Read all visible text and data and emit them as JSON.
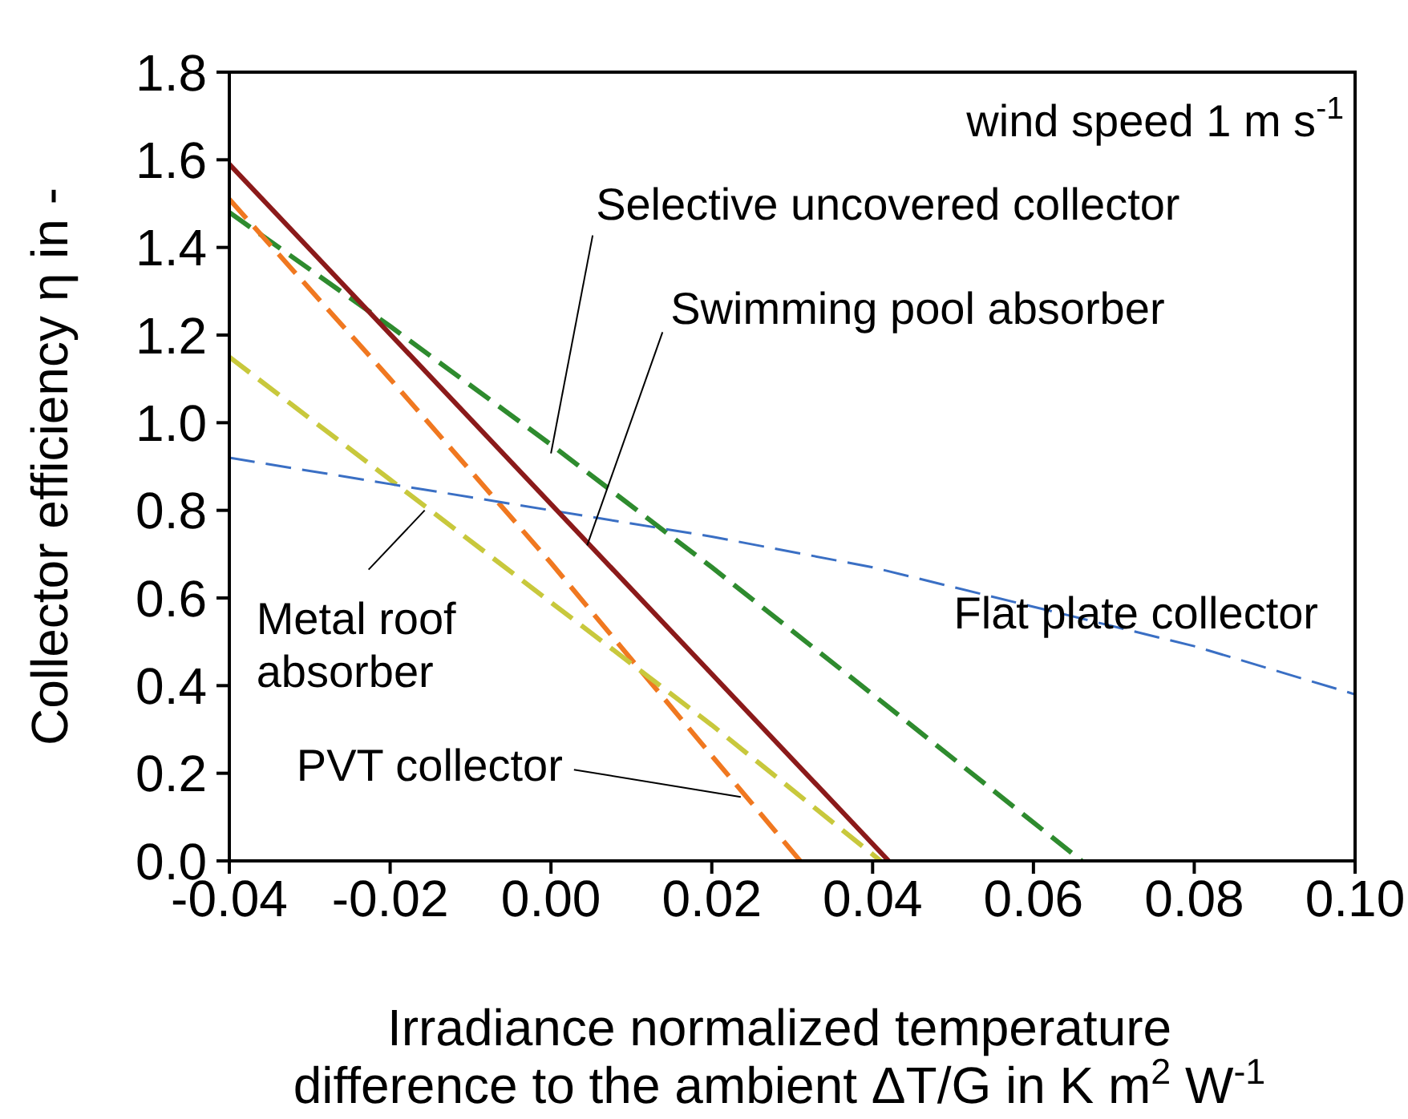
{
  "chart_data": {
    "type": "line",
    "xlabel": "Irradiance normalized temperature\ndifference to the ambient ΔT/G in K m$^{2}$ W$^{-1}$",
    "ylabel": "Collector efficiency η in -",
    "xlim": [
      -0.04,
      0.1
    ],
    "xticks": [
      {
        "value": -0.04,
        "label": "-0.04"
      },
      {
        "value": -0.02,
        "label": "-0.02"
      },
      {
        "value": 0,
        "label": "0.00"
      },
      {
        "value": 0.02,
        "label": "0.02"
      },
      {
        "value": 0.04,
        "label": "0.04"
      },
      {
        "value": 0.06,
        "label": "0.06"
      },
      {
        "value": 0.08,
        "label": "0.08"
      },
      {
        "value": 0.1,
        "label": "0.10"
      }
    ],
    "ylim": [
      0,
      1.8
    ],
    "yticks": [
      {
        "value": 0,
        "label": "0.0"
      },
      {
        "value": 0.2,
        "label": "0.2"
      },
      {
        "value": 0.4,
        "label": "0.4"
      },
      {
        "value": 0.6,
        "label": "0.6"
      },
      {
        "value": 0.8,
        "label": "0.8"
      },
      {
        "value": 1,
        "label": "1.0"
      },
      {
        "value": 1.2,
        "label": "1.2"
      },
      {
        "value": 1.4,
        "label": "1.4"
      },
      {
        "value": 1.6,
        "label": "1.6"
      },
      {
        "value": 1.8,
        "label": "1.8"
      }
    ],
    "grid": false,
    "marker": "none",
    "series": [
      {
        "color": "#2e8b2e",
        "line_style": "dashed",
        "x": [
          -0.04,
          -0.02,
          0,
          0.02,
          0.04,
          0.066
        ],
        "values": [
          1.48,
          1.22,
          0.95,
          0.67,
          0.38,
          0
        ]
      },
      {
        "color": "#f07820",
        "line_style": "dashed",
        "x": [
          -0.04,
          -0.02,
          0,
          0.02,
          0.031
        ],
        "values": [
          1.51,
          1.1,
          0.68,
          0.24,
          0
        ]
      },
      {
        "color": "#c8c83c",
        "line_style": "dashed",
        "x": [
          -0.04,
          -0.02,
          0,
          0.02,
          0.041
        ],
        "values": [
          1.15,
          0.87,
          0.59,
          0.31,
          0
        ]
      },
      {
        "color": "#3a6fc4",
        "line_style": "dashed",
        "x": [
          -0.04,
          -0.02,
          0,
          0.02,
          0.04,
          0.06,
          0.08,
          0.1
        ],
        "values": [
          0.92,
          0.86,
          0.8,
          0.74,
          0.67,
          0.58,
          0.49,
          0.38
        ]
      },
      {
        "color": "#8b1a1a",
        "line_style": "solid",
        "x": [
          -0.04,
          0.042
        ],
        "values": [
          1.59,
          0
        ]
      }
    ],
    "annotations": [
      "wind speed 1 m s$^{-1}$",
      {
        "text": "Selective uncovered collector",
        "x": 0,
        "y": 0.93
      },
      {
        "text": "Swimming pool absorber",
        "x": 0.0045,
        "y": 0.72
      },
      "Flat plate collector",
      {
        "text": "Metal roof\nabsorber",
        "x": -0.0157,
        "y": 0.8
      },
      {
        "text": "PVT collector",
        "x": 0.0236,
        "y": 0.146
      }
    ]
  }
}
